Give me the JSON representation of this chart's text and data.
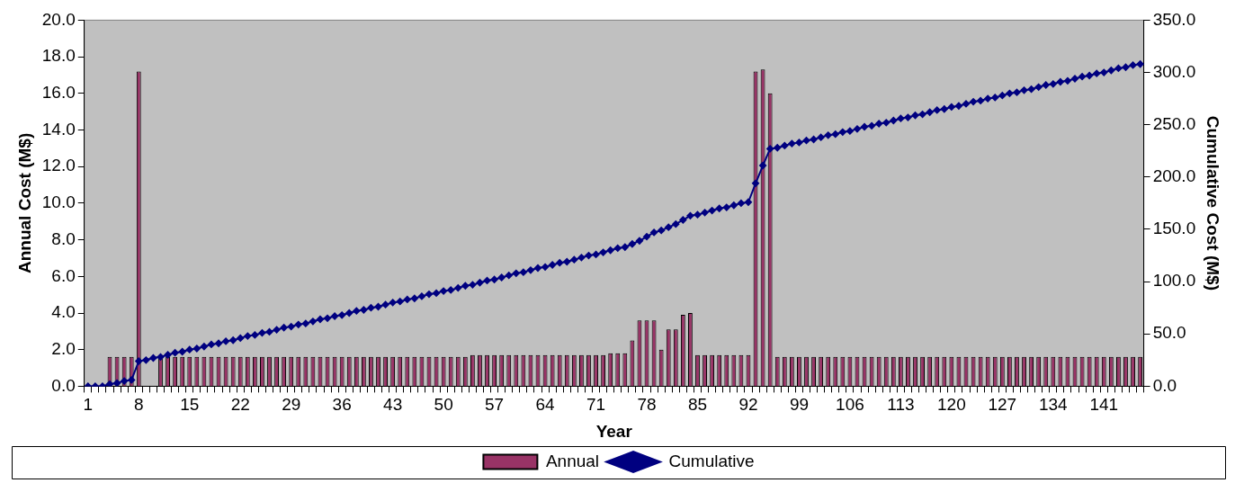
{
  "chart_data": {
    "type": "bar",
    "categories": [
      "1",
      null,
      null,
      null,
      null,
      null,
      null,
      "8",
      null,
      null,
      null,
      null,
      null,
      null,
      "15",
      null,
      null,
      null,
      null,
      null,
      null,
      "22",
      null,
      null,
      null,
      null,
      null,
      null,
      "29",
      null,
      null,
      null,
      null,
      null,
      null,
      "36",
      null,
      null,
      null,
      null,
      null,
      null,
      "43",
      null,
      null,
      null,
      null,
      null,
      null,
      "50",
      null,
      null,
      null,
      null,
      null,
      null,
      "57",
      null,
      null,
      null,
      null,
      null,
      null,
      "64",
      null,
      null,
      null,
      null,
      null,
      null,
      "71",
      null,
      null,
      null,
      null,
      null,
      null,
      "78",
      null,
      null,
      null,
      null,
      null,
      null,
      "85",
      null,
      null,
      null,
      null,
      null,
      null,
      "92",
      null,
      null,
      null,
      null,
      null,
      null,
      "99",
      null,
      null,
      null,
      null,
      null,
      null,
      "106",
      null,
      null,
      null,
      null,
      null,
      null,
      "113",
      null,
      null,
      null,
      null,
      null,
      null,
      "120",
      null,
      null,
      null,
      null,
      null,
      null,
      "127",
      null,
      null,
      null,
      null,
      null,
      null,
      "134",
      null,
      null,
      null,
      null,
      null,
      null,
      "141",
      null,
      null,
      null,
      null,
      null
    ],
    "series": [
      {
        "name": "Annual",
        "color": "#993366",
        "values": [
          0,
          0,
          0,
          1.6,
          1.6,
          1.6,
          1.6,
          17.2,
          null,
          null,
          1.6,
          1.6,
          1.6,
          1.6,
          1.6,
          1.6,
          1.6,
          1.6,
          1.6,
          1.6,
          1.6,
          1.6,
          1.6,
          1.6,
          1.6,
          1.6,
          1.6,
          1.6,
          1.6,
          1.6,
          1.6,
          1.6,
          1.6,
          1.6,
          1.6,
          1.6,
          1.6,
          1.6,
          1.6,
          1.6,
          1.6,
          1.6,
          1.6,
          1.6,
          1.6,
          1.6,
          1.6,
          1.6,
          1.6,
          1.6,
          1.6,
          1.6,
          1.6,
          1.7,
          1.7,
          1.7,
          1.7,
          1.7,
          1.7,
          1.7,
          1.7,
          1.7,
          1.7,
          1.7,
          1.7,
          1.7,
          1.7,
          1.7,
          1.7,
          1.7,
          1.7,
          1.7,
          1.8,
          1.8,
          1.8,
          2.5,
          3.6,
          3.6,
          3.6,
          2.0,
          3.1,
          3.1,
          3.9,
          4.0,
          1.7,
          1.7,
          1.7,
          1.7,
          1.7,
          1.7,
          1.7,
          1.7,
          17.2,
          17.3,
          16.0,
          1.6,
          1.6,
          1.6,
          1.6,
          1.6,
          1.6,
          1.6,
          1.6,
          1.6,
          1.6,
          1.6,
          1.6,
          1.6,
          1.6,
          1.6,
          1.6,
          1.6,
          1.6,
          1.6,
          1.6,
          1.6,
          1.6,
          1.6,
          1.6,
          1.6,
          1.6,
          1.6,
          1.6,
          1.6,
          1.6,
          1.6,
          1.6,
          1.6,
          1.6,
          1.6,
          1.6,
          1.6,
          1.6,
          1.6,
          1.6,
          1.6,
          1.6,
          1.6,
          1.6,
          1.6,
          1.6,
          1.6,
          1.6,
          1.6,
          1.6,
          1.6
        ]
      },
      {
        "name": "Cumulative",
        "type": "line",
        "axis": "y2",
        "color": "#000080",
        "marker": "diamond",
        "values": [
          0,
          0,
          0,
          2,
          3,
          5,
          6,
          24,
          25,
          27,
          28,
          30,
          32,
          33,
          35,
          36,
          38,
          40,
          41,
          43,
          44,
          46,
          48,
          49,
          51,
          52,
          54,
          56,
          57,
          59,
          60,
          62,
          64,
          65,
          67,
          68,
          70,
          72,
          73,
          75,
          76,
          78,
          80,
          81,
          83,
          84,
          86,
          88,
          89,
          91,
          92,
          94,
          96,
          97,
          99,
          101,
          102,
          104,
          106,
          108,
          109,
          111,
          113,
          114,
          116,
          118,
          119,
          121,
          123,
          125,
          126,
          128,
          130,
          132,
          133,
          136,
          139,
          143,
          147,
          149,
          152,
          155,
          159,
          163,
          164,
          166,
          168,
          170,
          171,
          173,
          175,
          176,
          194,
          211,
          227,
          228,
          230,
          232,
          233,
          235,
          236,
          238,
          240,
          241,
          243,
          244,
          246,
          248,
          249,
          251,
          252,
          254,
          256,
          257,
          259,
          260,
          262,
          264,
          265,
          267,
          268,
          270,
          272,
          273,
          275,
          276,
          278,
          280,
          281,
          283,
          284,
          286,
          288,
          289,
          291,
          292,
          294,
          296,
          297,
          299,
          300,
          302,
          304,
          305,
          307,
          308
        ]
      }
    ],
    "xlabel": "Year",
    "ylabel": "Annual Cost (M$)",
    "y2label": "Cumulative Cost (M$)",
    "ylim": [
      0,
      20
    ],
    "yticks": [
      {
        "value": 0,
        "label": "0.0"
      },
      {
        "value": 2,
        "label": "2.0"
      },
      {
        "value": 4,
        "label": "4.0"
      },
      {
        "value": 6,
        "label": "6.0"
      },
      {
        "value": 8,
        "label": "8.0"
      },
      {
        "value": 10,
        "label": "10.0"
      },
      {
        "value": 12,
        "label": "12.0"
      },
      {
        "value": 14,
        "label": "14.0"
      },
      {
        "value": 16,
        "label": "16.0"
      },
      {
        "value": 18,
        "label": "18.0"
      },
      {
        "value": 20,
        "label": "20.0"
      }
    ],
    "y2lim": [
      0,
      350
    ],
    "y2ticks": [
      {
        "value": 0,
        "label": "0.0"
      },
      {
        "value": 50,
        "label": "50.0"
      },
      {
        "value": 100,
        "label": "100.0"
      },
      {
        "value": 150,
        "label": "150.0"
      },
      {
        "value": 200,
        "label": "200.0"
      },
      {
        "value": 250,
        "label": "250.0"
      },
      {
        "value": 300,
        "label": "300.0"
      },
      {
        "value": 350,
        "label": "350.0"
      }
    ],
    "grid": false,
    "legend": "bottom"
  }
}
